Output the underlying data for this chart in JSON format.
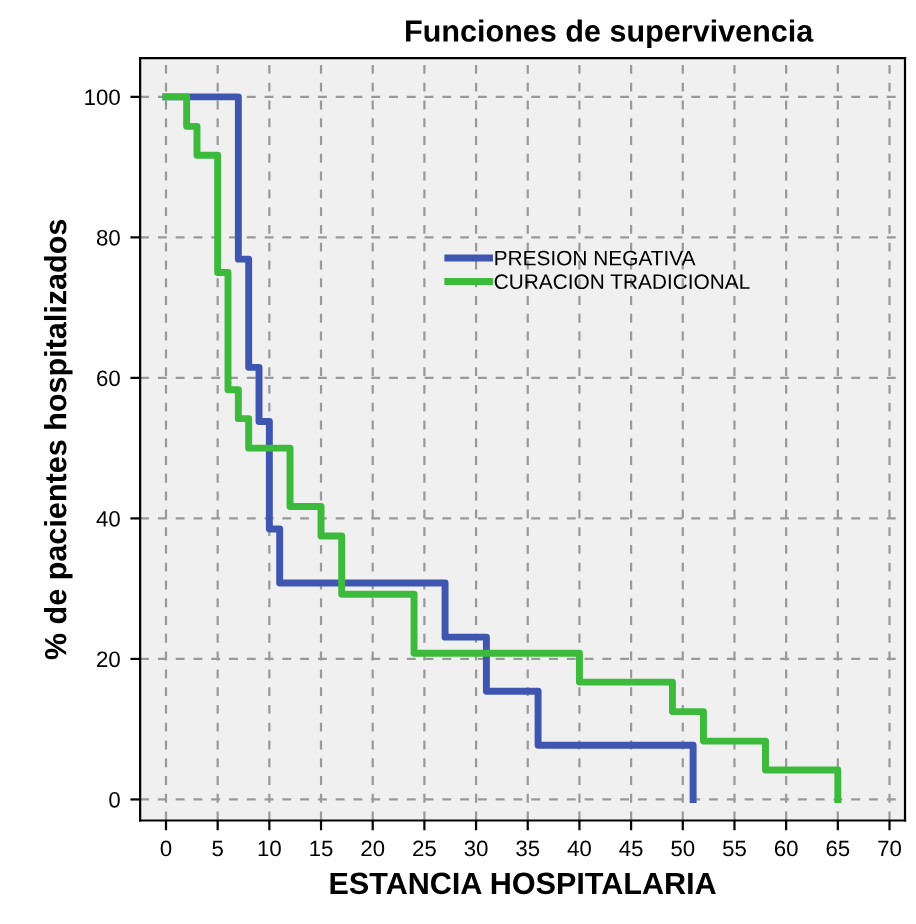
{
  "chart_data": {
    "type": "step",
    "title": "Funciones de supervivencia",
    "xlabel": "ESTANCIA HOSPITALARIA",
    "ylabel": "% de pacientes hospitalizados",
    "series": [
      {
        "name": "PRESION NEGATIVA",
        "color": "#3f56b0",
        "x": [
          0,
          7,
          8,
          9,
          10,
          11,
          27,
          31,
          36,
          51,
          51
        ],
        "values": [
          100,
          76.9,
          61.5,
          53.8,
          38.5,
          30.8,
          23.1,
          15.4,
          7.7,
          0,
          0
        ]
      },
      {
        "name": "CURACION TRADICIONAL",
        "color": "#3cba3c",
        "x": [
          0,
          2,
          3,
          5,
          6,
          7,
          8,
          12,
          15,
          17,
          24,
          40,
          49,
          52,
          58,
          65,
          65
        ],
        "values": [
          100,
          95.8,
          91.7,
          75,
          58.3,
          54.2,
          50,
          41.7,
          37.5,
          29.2,
          20.8,
          16.7,
          12.5,
          8.3,
          4.2,
          0,
          0
        ]
      }
    ],
    "xlim": [
      -2.5,
      71.5
    ],
    "ylim": [
      -3,
      105.5
    ],
    "xticks": [
      0,
      5,
      10,
      15,
      20,
      25,
      30,
      35,
      40,
      45,
      50,
      55,
      60,
      65,
      70
    ],
    "yticks": [
      0,
      20,
      40,
      60,
      80,
      100
    ],
    "grid": true,
    "legend": "center",
    "line_style": "solid",
    "marker": "none"
  }
}
